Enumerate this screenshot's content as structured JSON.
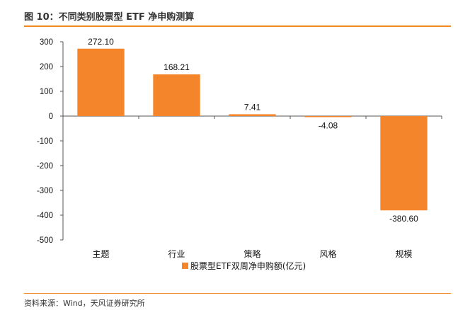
{
  "figure": {
    "title": "图 10：不同类别股票型 ETF 净申购测算",
    "source": "资料来源：Wind，天风证券研究所"
  },
  "colors": {
    "accent": "#f08a1e",
    "bar": "#f5852a",
    "axis": "#555555"
  },
  "chart_data": {
    "type": "bar",
    "categories": [
      "主题",
      "行业",
      "策略",
      "风格",
      "规模"
    ],
    "series": [
      {
        "name": "股票型ETF双周净申购额(亿元)",
        "values": [
          272.1,
          168.21,
          7.41,
          -4.08,
          -380.6
        ]
      }
    ],
    "data_labels": [
      "272.10",
      "168.21",
      "7.41",
      "-4.08",
      "-380.60"
    ],
    "ylim": [
      -500,
      300
    ],
    "yticks": [
      300,
      200,
      100,
      0,
      -100,
      -200,
      -300,
      -400,
      -500
    ],
    "ytick_labels": [
      "300",
      "200",
      "100",
      "0",
      "-100",
      "-200",
      "-300",
      "-400",
      "-500"
    ],
    "grid": false,
    "legend_position": "bottom-center"
  }
}
